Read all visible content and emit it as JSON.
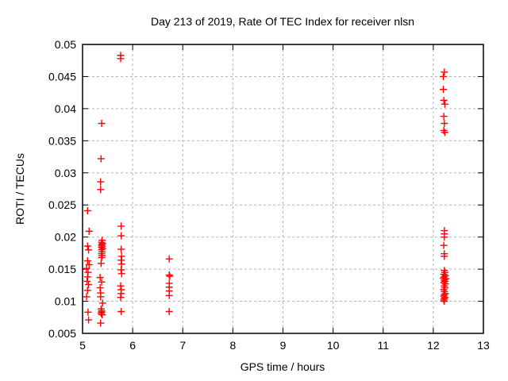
{
  "chart": {
    "title": "Day 213 of 2019, Rate Of TEC Index for receiver nlsn",
    "xlabel": "GPS time / hours",
    "ylabel": "ROTI / TECUs"
  },
  "colors": {
    "background": "#ffffff",
    "marker": "#ff0000",
    "grid": "#b4b4b4",
    "axis": "#000000",
    "text": "#000000"
  },
  "chart_data": {
    "type": "scatter",
    "title": "Day 213 of 2019, Rate Of TEC Index for receiver nlsn",
    "xlabel": "GPS time / hours",
    "ylabel": "ROTI / TECUs",
    "marker": "plus",
    "series_color": "#ff0000",
    "grid": true,
    "legend": "none",
    "xlim": [
      5,
      13
    ],
    "ylim": [
      0.005,
      0.05
    ],
    "x_ticks": [
      5,
      6,
      7,
      8,
      9,
      10,
      11,
      12,
      13
    ],
    "x_tick_labels": [
      "5",
      "6",
      "7",
      "8",
      "9",
      "10",
      "11",
      "12",
      "13"
    ],
    "y_ticks": [
      0.005,
      0.01,
      0.015,
      0.02,
      0.025,
      0.03,
      0.035,
      0.04,
      0.045,
      0.05
    ],
    "y_tick_labels": [
      "0.005",
      "0.01",
      "0.015",
      "0.02",
      "0.025",
      "0.03",
      "0.035",
      "0.04",
      "0.045",
      "0.05"
    ],
    "points": [
      [
        5.1,
        0.0241
      ],
      [
        5.13,
        0.0209
      ],
      [
        5.1,
        0.0186
      ],
      [
        5.12,
        0.018
      ],
      [
        5.1,
        0.0163
      ],
      [
        5.13,
        0.0157
      ],
      [
        5.08,
        0.0151
      ],
      [
        5.11,
        0.0145
      ],
      [
        5.1,
        0.0138
      ],
      [
        5.09,
        0.0131
      ],
      [
        5.12,
        0.0126
      ],
      [
        5.1,
        0.0117
      ],
      [
        5.08,
        0.0107
      ],
      [
        5.11,
        0.0083
      ],
      [
        5.12,
        0.0071
      ],
      [
        5.38,
        0.0377
      ],
      [
        5.37,
        0.0322
      ],
      [
        5.36,
        0.0286
      ],
      [
        5.36,
        0.0274
      ],
      [
        5.39,
        0.0195
      ],
      [
        5.38,
        0.0192
      ],
      [
        5.4,
        0.019
      ],
      [
        5.38,
        0.0188
      ],
      [
        5.39,
        0.0186
      ],
      [
        5.38,
        0.0184
      ],
      [
        5.4,
        0.0182
      ],
      [
        5.38,
        0.018
      ],
      [
        5.39,
        0.0177
      ],
      [
        5.38,
        0.0174
      ],
      [
        5.39,
        0.0171
      ],
      [
        5.38,
        0.0168
      ],
      [
        5.37,
        0.0159
      ],
      [
        5.35,
        0.0137
      ],
      [
        5.38,
        0.013
      ],
      [
        5.35,
        0.0121
      ],
      [
        5.36,
        0.0113
      ],
      [
        5.36,
        0.0107
      ],
      [
        5.4,
        0.0097
      ],
      [
        5.37,
        0.0088
      ],
      [
        5.38,
        0.0085
      ],
      [
        5.38,
        0.0083
      ],
      [
        5.37,
        0.0081
      ],
      [
        5.39,
        0.0079
      ],
      [
        5.36,
        0.0066
      ],
      [
        5.76,
        0.0483
      ],
      [
        5.76,
        0.0478
      ],
      [
        5.77,
        0.0217
      ],
      [
        5.77,
        0.0202
      ],
      [
        5.77,
        0.0181
      ],
      [
        5.78,
        0.017
      ],
      [
        5.77,
        0.0164
      ],
      [
        5.78,
        0.0158
      ],
      [
        5.77,
        0.0149
      ],
      [
        5.78,
        0.0143
      ],
      [
        5.76,
        0.0124
      ],
      [
        5.77,
        0.0118
      ],
      [
        5.77,
        0.0112
      ],
      [
        5.76,
        0.0106
      ],
      [
        5.77,
        0.0084
      ],
      [
        6.73,
        0.0166
      ],
      [
        6.73,
        0.0141
      ],
      [
        6.74,
        0.0139
      ],
      [
        6.73,
        0.0128
      ],
      [
        6.73,
        0.0122
      ],
      [
        6.73,
        0.0116
      ],
      [
        6.73,
        0.0109
      ],
      [
        6.73,
        0.0084
      ],
      [
        12.22,
        0.0457
      ],
      [
        12.2,
        0.045
      ],
      [
        12.2,
        0.043
      ],
      [
        12.21,
        0.0413
      ],
      [
        12.23,
        0.0407
      ],
      [
        12.21,
        0.0388
      ],
      [
        12.22,
        0.0377
      ],
      [
        12.21,
        0.0366
      ],
      [
        12.23,
        0.0363
      ],
      [
        12.22,
        0.021
      ],
      [
        12.22,
        0.0205
      ],
      [
        12.22,
        0.02
      ],
      [
        12.21,
        0.0187
      ],
      [
        12.22,
        0.0174
      ],
      [
        12.22,
        0.017
      ],
      [
        12.22,
        0.0148
      ],
      [
        12.23,
        0.0145
      ],
      [
        12.21,
        0.0142
      ],
      [
        12.24,
        0.014
      ],
      [
        12.22,
        0.0138
      ],
      [
        12.2,
        0.0136
      ],
      [
        12.25,
        0.0135
      ],
      [
        12.22,
        0.0133
      ],
      [
        12.23,
        0.0131
      ],
      [
        12.21,
        0.0129
      ],
      [
        12.24,
        0.0127
      ],
      [
        12.22,
        0.0124
      ],
      [
        12.23,
        0.0121
      ],
      [
        12.21,
        0.0118
      ],
      [
        12.22,
        0.0115
      ],
      [
        12.24,
        0.0112
      ],
      [
        12.22,
        0.011
      ],
      [
        12.21,
        0.0108
      ],
      [
        12.23,
        0.0106
      ],
      [
        12.22,
        0.0104
      ],
      [
        12.21,
        0.0102
      ],
      [
        12.22,
        0.01
      ]
    ]
  }
}
